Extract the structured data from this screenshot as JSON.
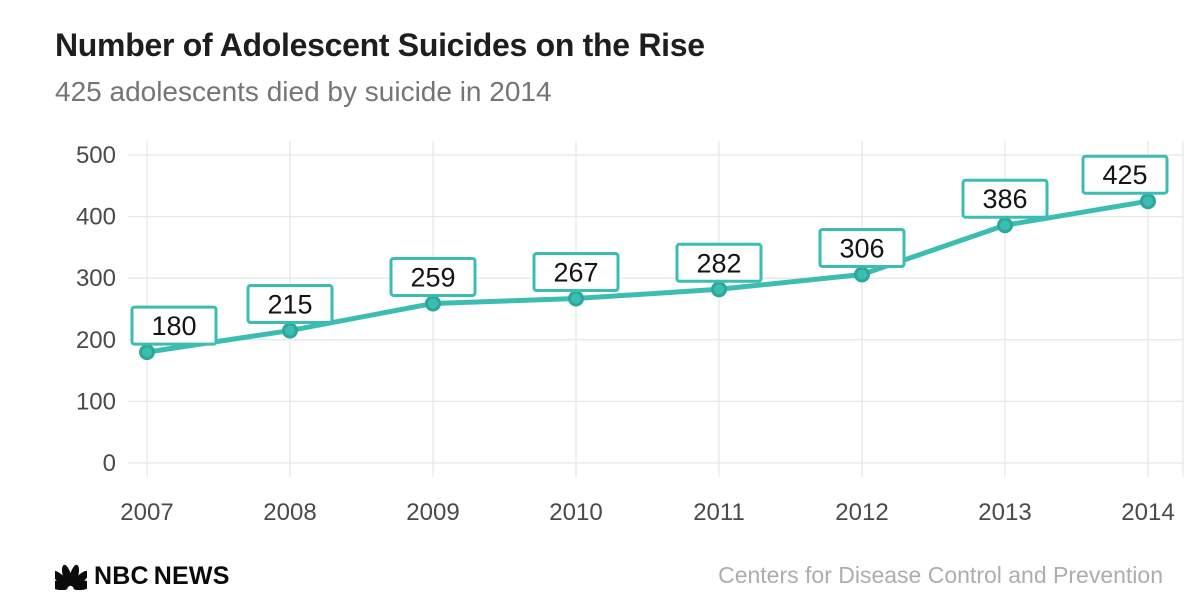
{
  "chart_data": {
    "type": "line",
    "title": "Number of Adolescent Suicides on the Rise",
    "subtitle": "425 adolescents died by suicide in 2014",
    "x": [
      2007,
      2008,
      2009,
      2010,
      2011,
      2012,
      2013,
      2014
    ],
    "values": [
      180,
      215,
      259,
      267,
      282,
      306,
      386,
      425
    ],
    "xlabel": "",
    "ylabel": "",
    "ylim": [
      0,
      500
    ],
    "yticks": [
      0,
      100,
      200,
      300,
      400,
      500
    ],
    "grid": true,
    "legend": "none",
    "point_labels": true,
    "colors": {
      "line": "#3cbdb2",
      "marker_fill": "#3cbdb2",
      "marker_stroke": "#2da69c",
      "label_box_border": "#3cbdb2",
      "label_box_fill": "#ffffff",
      "label_text": "#141414",
      "grid": "#e8e8e8",
      "tick_text": "#4a4a4a",
      "title_text": "#1e1e1e",
      "subtitle_text": "#757575"
    }
  },
  "footer": {
    "brand_nbc": "NBC",
    "brand_news": "NEWS",
    "source": "Centers for Disease Control and Prevention"
  }
}
